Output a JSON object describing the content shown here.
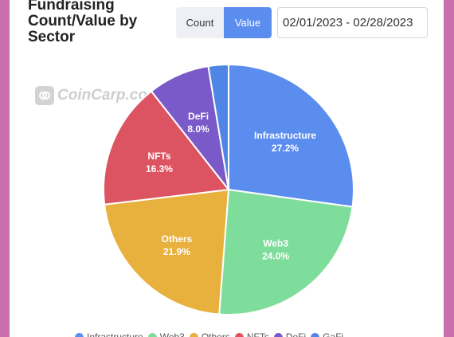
{
  "header": {
    "title": "Fundraising\nCount/Value by\nSector",
    "toggle_count": "Count",
    "toggle_value": "Value",
    "date_range": "02/01/2023 - 02/28/2023"
  },
  "watermark": "CoinCarp.com",
  "chart_data": {
    "type": "pie",
    "title": "Fundraising Count/Value by Sector",
    "start_angle_deg": 0,
    "slices": [
      {
        "label": "Infrastructure",
        "value": 27.2,
        "display": "27.2%",
        "color": "#5b8def",
        "show_label": true
      },
      {
        "label": "Web3",
        "value": 24.0,
        "display": "24.0%",
        "color": "#7fdd9b",
        "show_label": true
      },
      {
        "label": "Others",
        "value": 21.9,
        "display": "21.9%",
        "color": "#e8b13e",
        "show_label": true
      },
      {
        "label": "NFTs",
        "value": 16.3,
        "display": "16.3%",
        "color": "#dc5461",
        "show_label": true
      },
      {
        "label": "DeFi",
        "value": 8.0,
        "display": "8.0%",
        "color": "#7a5ac9",
        "show_label": true
      },
      {
        "label": "GaFi",
        "value": 2.6,
        "display": "2.6%",
        "color": "#4f86e6",
        "show_label": false
      }
    ],
    "legend_position": "bottom"
  }
}
